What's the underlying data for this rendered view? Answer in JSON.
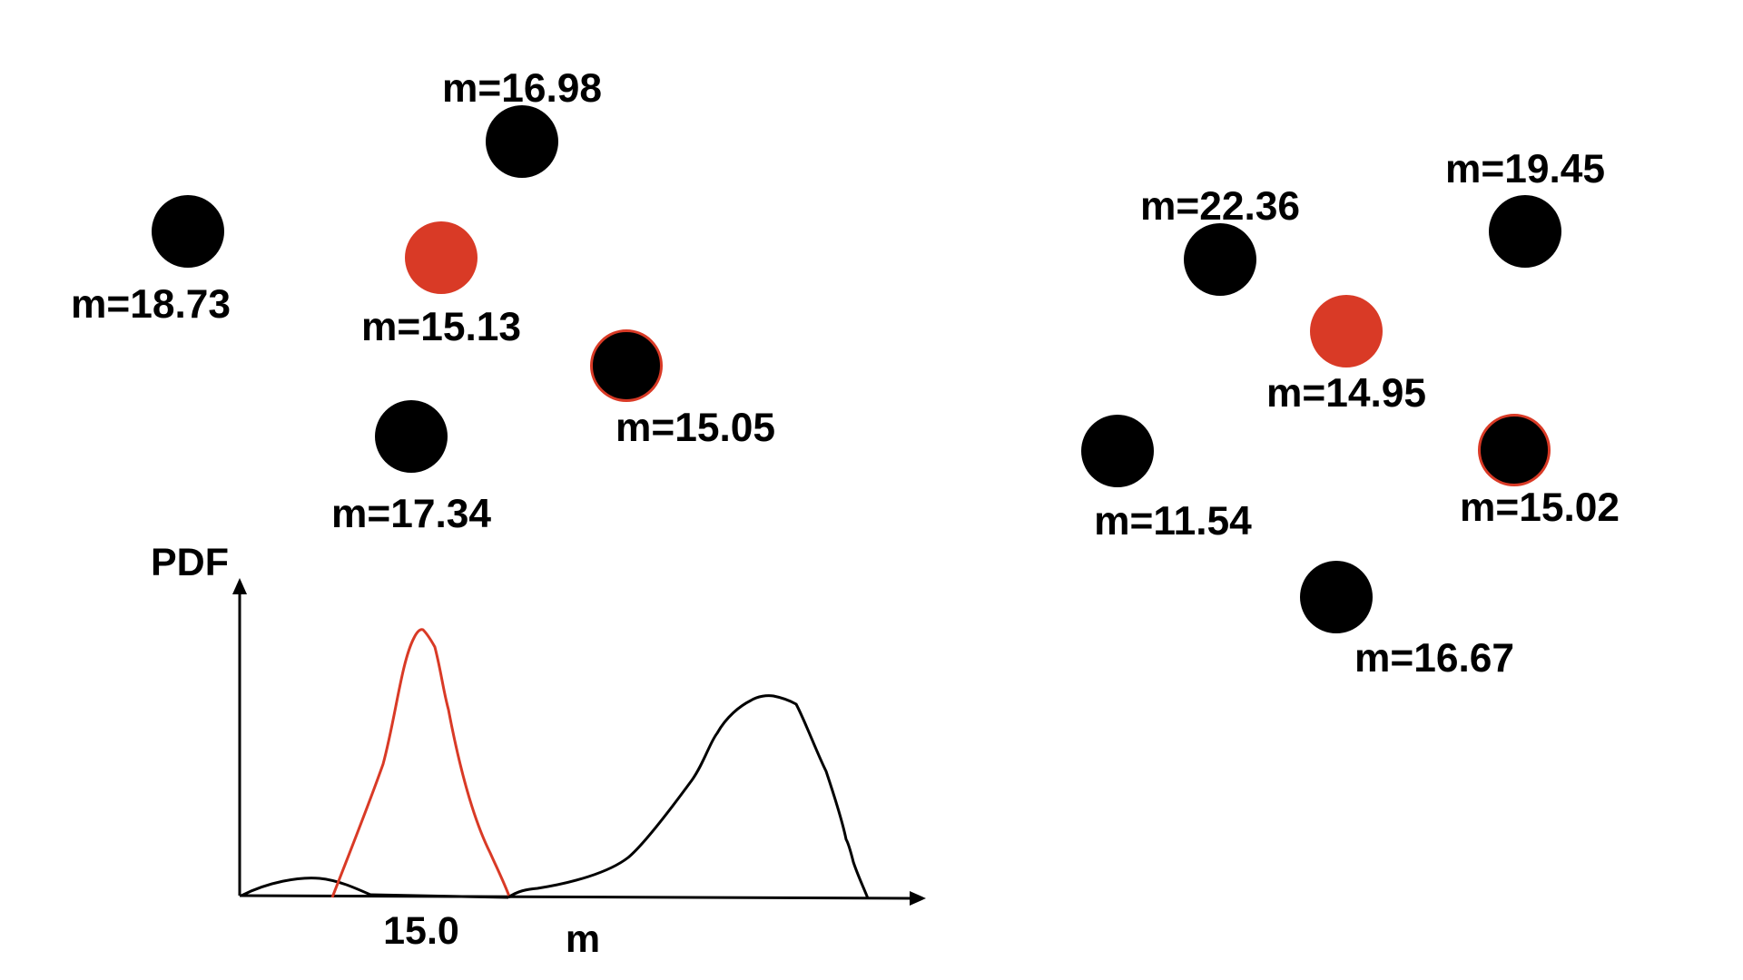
{
  "colors": {
    "background": "#ffffff",
    "node": "#000000",
    "highlight": "#d93a26",
    "curve_red": "#d93a26",
    "curve_black": "#000000"
  },
  "left_cluster": {
    "nodes": [
      {
        "label": "m=16.98",
        "style": "black"
      },
      {
        "label": "m=18.73",
        "style": "black"
      },
      {
        "label": "m=15.13",
        "style": "red"
      },
      {
        "label": "m=15.05",
        "style": "black-red-outline"
      },
      {
        "label": "m=17.34",
        "style": "black"
      }
    ]
  },
  "right_cluster": {
    "nodes": [
      {
        "label": "m=22.36",
        "style": "black"
      },
      {
        "label": "m=19.45",
        "style": "black"
      },
      {
        "label": "m=14.95",
        "style": "red"
      },
      {
        "label": "m=11.54",
        "style": "black"
      },
      {
        "label": "m=15.02",
        "style": "black-red-outline"
      },
      {
        "label": "m=16.67",
        "style": "black"
      }
    ]
  },
  "pdf_plot": {
    "y_axis_label": "PDF",
    "x_axis_label": "m",
    "x_tick_label": "15.0"
  }
}
